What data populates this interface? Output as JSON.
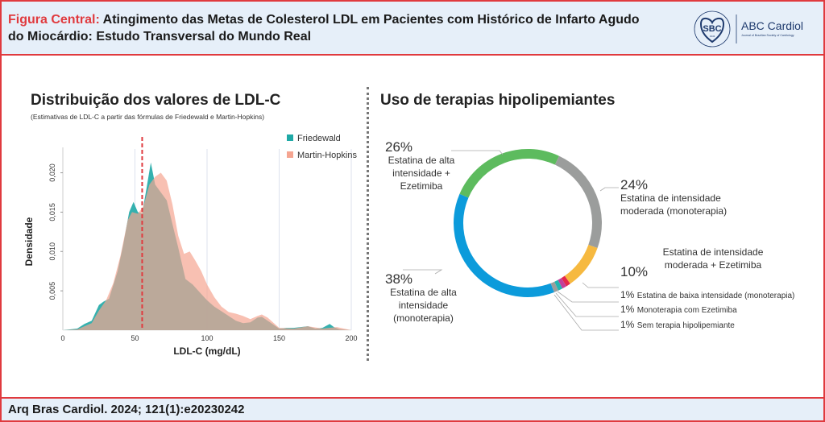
{
  "header": {
    "title_prefix": "Figura Central:",
    "title": "Atingimento das Metas de Colesterol LDL em Pacientes com Histórico de Infarto Agudo do Miocárdio: Estudo Transversal do Mundo Real",
    "logo_sbc": "SBC",
    "logo_sbc_ring": "SOCIEDADE BRASILEIRA DE CARDIOLOGIA",
    "logo_sbc_year": "1943",
    "logo_journal": "ABC Cardiol",
    "logo_journal_sub": "Journal of Brazilian Society of Cardiology"
  },
  "left": {
    "heading": "Distribuição dos valores de LDL-C",
    "subheading": "(Estimativas de LDL-C a partir das fórmulas de Friedewald e Martin-Hopkins)"
  },
  "right": {
    "heading": "Uso de terapias hipolipemiantes"
  },
  "footer": {
    "citation": "Arq Bras Cardiol. 2024; 121(1):e20230242"
  },
  "chart_data": [
    {
      "type": "area",
      "xlabel": "LDL-C (mg/dL)",
      "ylabel": "Densidade",
      "xlim": [
        0,
        200
      ],
      "ylim": [
        0,
        0.022
      ],
      "xticks": [
        "0",
        "50",
        "100",
        "150",
        "200"
      ],
      "yticks": [
        "0,005",
        "0,010",
        "0,015",
        "0,020"
      ],
      "legend": "top-right",
      "reference_line_x": 55,
      "reference_color": "#e03a3e",
      "series": [
        {
          "name": "Friedewald",
          "color": "#1fa9a6",
          "x": [
            0,
            10,
            15,
            20,
            25,
            28,
            32,
            38,
            42,
            46,
            49,
            52,
            55,
            58,
            61,
            64,
            68,
            72,
            76,
            80,
            85,
            90,
            95,
            100,
            105,
            110,
            115,
            120,
            125,
            130,
            135,
            138,
            142,
            150,
            155,
            160,
            165,
            170,
            175,
            180,
            185,
            188,
            192,
            200
          ],
          "y": [
            0,
            0.0002,
            0.0008,
            0.0012,
            0.0032,
            0.0036,
            0.004,
            0.0075,
            0.011,
            0.015,
            0.0163,
            0.015,
            0.0148,
            0.018,
            0.0213,
            0.0185,
            0.0175,
            0.0165,
            0.0135,
            0.0105,
            0.0065,
            0.0058,
            0.0048,
            0.0038,
            0.003,
            0.0024,
            0.0018,
            0.0012,
            0.0009,
            0.001,
            0.0016,
            0.0017,
            0.0012,
            0.0002,
            0.0003,
            0.0003,
            0.0004,
            0.0005,
            0.0002,
            0.0003,
            0.0008,
            0.0004,
            0.0001,
            0
          ]
        },
        {
          "name": "Martin-Hopkins",
          "color": "#f5a591",
          "x": [
            0,
            10,
            15,
            20,
            25,
            30,
            35,
            40,
            45,
            48,
            52,
            56,
            60,
            64,
            68,
            72,
            76,
            80,
            84,
            88,
            92,
            96,
            100,
            105,
            110,
            115,
            120,
            125,
            130,
            135,
            138,
            142,
            150,
            160,
            170,
            180,
            190,
            200
          ],
          "y": [
            0,
            0.0001,
            0.0005,
            0.0009,
            0.0025,
            0.0038,
            0.006,
            0.0095,
            0.014,
            0.015,
            0.0148,
            0.0158,
            0.0185,
            0.0195,
            0.02,
            0.019,
            0.016,
            0.012,
            0.0097,
            0.01,
            0.0088,
            0.0075,
            0.0058,
            0.0042,
            0.003,
            0.0023,
            0.0021,
            0.0018,
            0.0014,
            0.0018,
            0.002,
            0.0016,
            0.0003,
            0.0002,
            0.0005,
            0.0002,
            0.0004,
            0
          ]
        }
      ]
    },
    {
      "type": "pie",
      "donut": true,
      "slices": [
        {
          "pct": "24%",
          "label": "Estatina de intensidade moderada (monoterapia)",
          "value": 24,
          "color": "#9b9d9c"
        },
        {
          "pct": "10%",
          "label": "Estatina de intensidade moderada + Ezetimiba",
          "value": 10,
          "color": "#f6b940"
        },
        {
          "pct": "1%",
          "label": "Estatina de baixa intensidade (monoterapia)",
          "value": 1,
          "color": "#e5294c"
        },
        {
          "pct": "1%",
          "label": "Monoterapia com Ezetimiba",
          "value": 1,
          "color": "#c4409a"
        },
        {
          "pct": "1%",
          "label": "Sem terapia hipolipemiante",
          "value": 1,
          "color": "#23b5b0"
        },
        {
          "pct": "",
          "label": "",
          "value": 1,
          "color": "#9b9d9c"
        },
        {
          "pct": "38%",
          "label": "Estatina de alta intensidade (monoterapia)",
          "value": 38,
          "color": "#0c9bdb"
        },
        {
          "pct": "26%",
          "label": "Estatina de alta intensidade + Ezetimiba",
          "value": 26,
          "color": "#5dbb5e"
        }
      ]
    }
  ]
}
